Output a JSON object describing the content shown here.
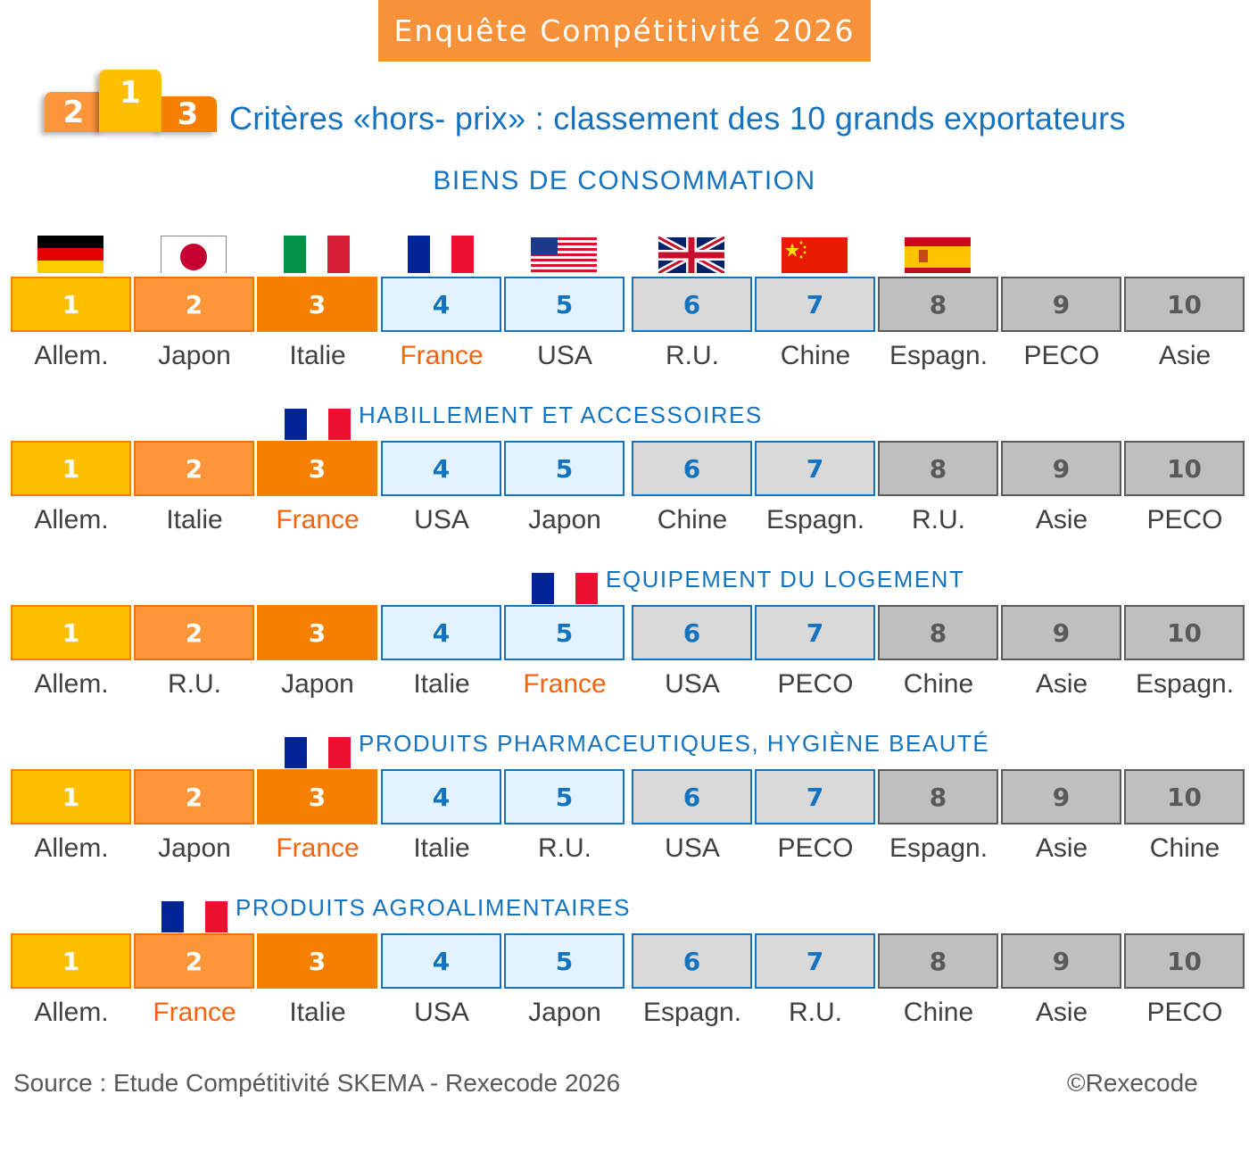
{
  "chart_data": {
    "type": "table",
    "title": "Enquête Compétitivité 2026",
    "subtitle": "Critères «hors- prix» : classement des 10 grands exportateurs",
    "podium": [
      "2",
      "1",
      "3"
    ],
    "ranks": [
      "1",
      "2",
      "3",
      "4",
      "5",
      "6",
      "7",
      "8",
      "9",
      "10"
    ],
    "highlight_country": "France",
    "colors": {
      "rank1": "#ffbe00",
      "rank2": "#fd953b",
      "rank3": "#f77f00",
      "rank4_5": "#e2f3fd",
      "rank6_7": "#d9d9d9",
      "rank8_10": "#bfbfbf",
      "title_blue": "#1473c0",
      "france": "#f7630c",
      "banner": "#f7923a"
    },
    "sections": [
      {
        "title": "BIENS DE CONSOMMATION",
        "countries": [
          "Allem.",
          "Japon",
          "Italie",
          "France",
          "USA",
          "R.U.",
          "Chine",
          "Espagn.",
          "PECO",
          "Asie"
        ],
        "flags": [
          "germany-flag",
          "japan-flag",
          "italy-flag",
          "france-flag",
          "usa-flag",
          "uk-flag",
          "china-flag",
          "spain-flag"
        ]
      },
      {
        "title": "HABILLEMENT ET ACCESSOIRES",
        "countries": [
          "Allem.",
          "Italie",
          "France",
          "USA",
          "Japon",
          "Chine",
          "Espagn.",
          "R.U.",
          "Asie",
          "PECO"
        ]
      },
      {
        "title": "EQUIPEMENT DU LOGEMENT",
        "countries": [
          "Allem.",
          "R.U.",
          "Japon",
          "Italie",
          "France",
          "USA",
          "PECO",
          "Chine",
          "Asie",
          "Espagn."
        ]
      },
      {
        "title": "PRODUITS PHARMACEUTIQUES, HYGIÈNE BEAUTÉ",
        "countries": [
          "Allem.",
          "Japon",
          "France",
          "Italie",
          "R.U.",
          "USA",
          "PECO",
          "Espagn.",
          "Asie",
          "Chine"
        ]
      },
      {
        "title": "PRODUITS AGROALIMENTAIRES",
        "countries": [
          "Allem.",
          "France",
          "Italie",
          "USA",
          "Japon",
          "Espagn.",
          "R.U.",
          "Chine",
          "Asie",
          "PECO"
        ]
      }
    ],
    "source": "Source : Etude Compétitivité SKEMA - Rexecode 2026",
    "copyright": "©Rexecode"
  }
}
